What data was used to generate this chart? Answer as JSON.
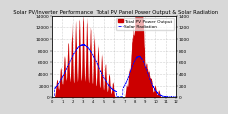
{
  "title": "  Solar PV/Inverter Performance  Total PV Panel Power Output & Solar Radiation",
  "title_fontsize": 3.8,
  "bg_color": "#d8d8d8",
  "plot_bg_color": "#ffffff",
  "red_color": "#cc0000",
  "blue_color": "#0000ff",
  "grid_color": "#aaaaaa",
  "ylim_left": [
    0,
    14000
  ],
  "ylim_right": [
    0,
    1400
  ],
  "legend_pv": "Total PV Power Output",
  "legend_rad": "Solar Radiation",
  "legend_fontsize": 3.2,
  "tick_fontsize": 3.2,
  "yticks_left": [
    0,
    2000,
    4000,
    6000,
    8000,
    10000,
    12000,
    14000
  ],
  "yticks_right": [
    0,
    200,
    400,
    600,
    800,
    1000,
    1200,
    1400
  ]
}
